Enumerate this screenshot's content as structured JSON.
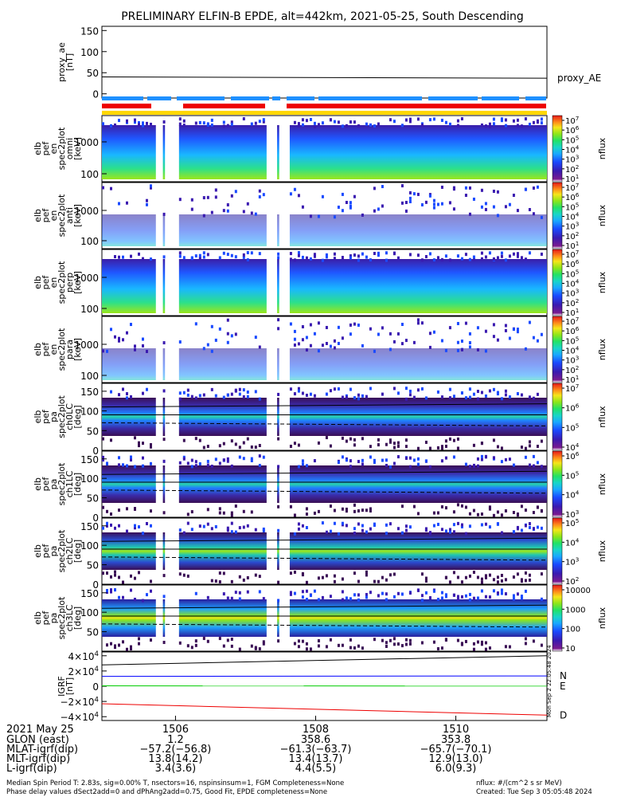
{
  "title": "PRELIMINARY ELFIN-B EPDE, alt=442km, 2021-05-25, South Descending",
  "chart_data": [
    {
      "type": "line",
      "ylabel": [
        "proxy_ae",
        "[nT]"
      ],
      "ylim": [
        -10,
        160
      ],
      "yticks": [
        "150",
        "100",
        "50",
        "0"
      ],
      "ytick_values": [
        150,
        100,
        50,
        0
      ],
      "series": [
        {
          "name": "proxy_AE",
          "color": "#000000",
          "x": [
            1504.95,
            1511.3
          ],
          "values": [
            40,
            37
          ]
        }
      ]
    },
    {
      "type": "heatmap",
      "ylabel": [
        "elb",
        "pef",
        "en",
        "spec2plot",
        "omni",
        "[keV]"
      ],
      "yticks": [
        "1000",
        "100"
      ],
      "colorbar": {
        "label": "nflux",
        "ticks": [
          {
            "base": "10",
            "exp": "7"
          },
          {
            "base": "10",
            "exp": "6"
          },
          {
            "base": "10",
            "exp": "5"
          },
          {
            "base": "10",
            "exp": "4"
          },
          {
            "base": "10",
            "exp": "3"
          },
          {
            "base": "10",
            "exp": "2"
          },
          {
            "base": "10",
            "exp": "1"
          }
        ]
      }
    },
    {
      "type": "heatmap",
      "ylabel": [
        "elb",
        "pef",
        "en",
        "spec2plot",
        "anti",
        "[keV]"
      ],
      "yticks": [
        "1000",
        "100"
      ],
      "colorbar": {
        "label": "nflux",
        "ticks": [
          {
            "base": "10",
            "exp": "7"
          },
          {
            "base": "10",
            "exp": "6"
          },
          {
            "base": "10",
            "exp": "5"
          },
          {
            "base": "10",
            "exp": "4"
          },
          {
            "base": "10",
            "exp": "3"
          },
          {
            "base": "10",
            "exp": "2"
          },
          {
            "base": "10",
            "exp": "1"
          }
        ]
      }
    },
    {
      "type": "heatmap",
      "ylabel": [
        "elb",
        "pef",
        "en",
        "spec2plot",
        "perp",
        "[keV]"
      ],
      "yticks": [
        "1000",
        "100"
      ],
      "colorbar": {
        "label": "nflux",
        "ticks": [
          {
            "base": "10",
            "exp": "7"
          },
          {
            "base": "10",
            "exp": "6"
          },
          {
            "base": "10",
            "exp": "5"
          },
          {
            "base": "10",
            "exp": "4"
          },
          {
            "base": "10",
            "exp": "3"
          },
          {
            "base": "10",
            "exp": "2"
          },
          {
            "base": "10",
            "exp": "1"
          }
        ]
      }
    },
    {
      "type": "heatmap",
      "ylabel": [
        "elb",
        "pef",
        "en",
        "spec2plot",
        "para",
        "[keV]"
      ],
      "yticks": [
        "1000",
        "100"
      ],
      "colorbar": {
        "label": "nflux",
        "ticks": [
          {
            "base": "10",
            "exp": "7"
          },
          {
            "base": "10",
            "exp": "6"
          },
          {
            "base": "10",
            "exp": "5"
          },
          {
            "base": "10",
            "exp": "4"
          },
          {
            "base": "10",
            "exp": "3"
          },
          {
            "base": "10",
            "exp": "2"
          },
          {
            "base": "10",
            "exp": "1"
          }
        ]
      }
    },
    {
      "type": "heatmap",
      "ylabel": [
        "elb",
        "pef",
        "pa",
        "spec2plot",
        "ch0LC",
        "[deg]"
      ],
      "yticks": [
        "150",
        "100",
        "50",
        "0"
      ],
      "colorbar": {
        "label": "nflux",
        "ticks": [
          {
            "base": "10",
            "exp": "7"
          },
          {
            "base": "10",
            "exp": "6"
          },
          {
            "base": "10",
            "exp": "5"
          },
          {
            "base": "10",
            "exp": "4"
          }
        ]
      }
    },
    {
      "type": "heatmap",
      "ylabel": [
        "elb",
        "pef",
        "pa",
        "spec2plot",
        "ch1LC",
        "[deg]"
      ],
      "yticks": [
        "150",
        "100",
        "50",
        "0"
      ],
      "colorbar": {
        "label": "nflux",
        "ticks": [
          {
            "base": "10",
            "exp": "6"
          },
          {
            "base": "10",
            "exp": "5"
          },
          {
            "base": "10",
            "exp": "4"
          },
          {
            "base": "10",
            "exp": "3"
          }
        ]
      }
    },
    {
      "type": "heatmap",
      "ylabel": [
        "elb",
        "pef",
        "pa",
        "spec2plot",
        "ch2LC",
        "[deg]"
      ],
      "yticks": [
        "150",
        "100",
        "50",
        "0"
      ],
      "colorbar": {
        "label": "nflux",
        "ticks": [
          {
            "base": "10",
            "exp": "5"
          },
          {
            "base": "10",
            "exp": "4"
          },
          {
            "base": "10",
            "exp": "3"
          },
          {
            "base": "10",
            "exp": "2"
          }
        ]
      }
    },
    {
      "type": "heatmap",
      "ylabel": [
        "elb",
        "pef",
        "pa",
        "spec2plot",
        "ch3LC",
        "[deg]"
      ],
      "yticks": [
        "150",
        "100",
        "50"
      ],
      "colorbar": {
        "label": "nflux",
        "ticks": [
          {
            "base": "10000",
            "exp": ""
          },
          {
            "base": "1000",
            "exp": ""
          },
          {
            "base": "100",
            "exp": ""
          },
          {
            "base": "10",
            "exp": ""
          }
        ]
      }
    },
    {
      "type": "line",
      "ylabel": [
        "IGRF",
        "[nT]"
      ],
      "ylim": [
        -45000,
        45000
      ],
      "yticks": [
        {
          "base": "4×10",
          "exp": "4"
        },
        {
          "base": "2×10",
          "exp": "4"
        },
        {
          "base": "0",
          "exp": ""
        },
        {
          "base": "−2×10",
          "exp": "4"
        },
        {
          "base": "−4×10",
          "exp": "4"
        }
      ],
      "ytick_values": [
        40000,
        20000,
        0,
        -20000,
        -40000
      ],
      "series": [
        {
          "name": "N",
          "color": "#0000ff",
          "x": [
            1504.95,
            1511.3
          ],
          "values": [
            13000,
            13500
          ]
        },
        {
          "name": "E",
          "color": "#00cc00",
          "x": [
            1504.95,
            1511.3
          ],
          "values": [
            500,
            200
          ]
        },
        {
          "name": "D",
          "color": "#ee0000",
          "x": [
            1504.95,
            1511.3
          ],
          "values": [
            -23000,
            -38000
          ]
        },
        {
          "name": "",
          "color": "#000000",
          "x": [
            1504.95,
            1511.3
          ],
          "values": [
            28000,
            40000
          ]
        }
      ]
    }
  ],
  "xaxis": {
    "date": "2021 May 25",
    "range": [
      1504.95,
      1511.3
    ],
    "ticks": [
      {
        "x": 1506,
        "label": "1506"
      },
      {
        "x": 1508,
        "label": "1508"
      },
      {
        "x": 1510,
        "label": "1510"
      }
    ],
    "rows": [
      {
        "label": "GLON (east)",
        "values": [
          "1.2",
          "358.6",
          "353.8"
        ]
      },
      {
        "label": "MLAT-igrf(dip)",
        "values": [
          "−57.2(−56.8)",
          "−61.3(−63.7)",
          "−65.7(−70.1)"
        ]
      },
      {
        "label": "MLT-igrf(dip)",
        "values": [
          "13.8(14.2)",
          "13.4(13.7)",
          "12.9(13.0)"
        ]
      },
      {
        "label": "L-igrf(dip)",
        "values": [
          "3.4(3.6)",
          "4.4(5.5)",
          "6.0(9.3)"
        ]
      }
    ]
  },
  "side_stamp": "Mon Sep 2 22:05:48 2024",
  "footer": {
    "line1": "Median Spin Period T: 2.83s, sig=0.00% T, nsectors=16, nspinsinsum=1, FGM Completeness=None",
    "line2": "Phase delay values dSect2add=0 and dPhAng2add=0.75, Good Fit, EPDE completeness=None",
    "right1": "nflux: #/(cm^2 s sr MeV)",
    "right2": "Created: Tue Sep  3 05:05:48 2024"
  },
  "colors": {
    "bar_blue": "#1e90ff",
    "bar_red": "#ee0000",
    "bar_yellow": "#ffd700"
  }
}
